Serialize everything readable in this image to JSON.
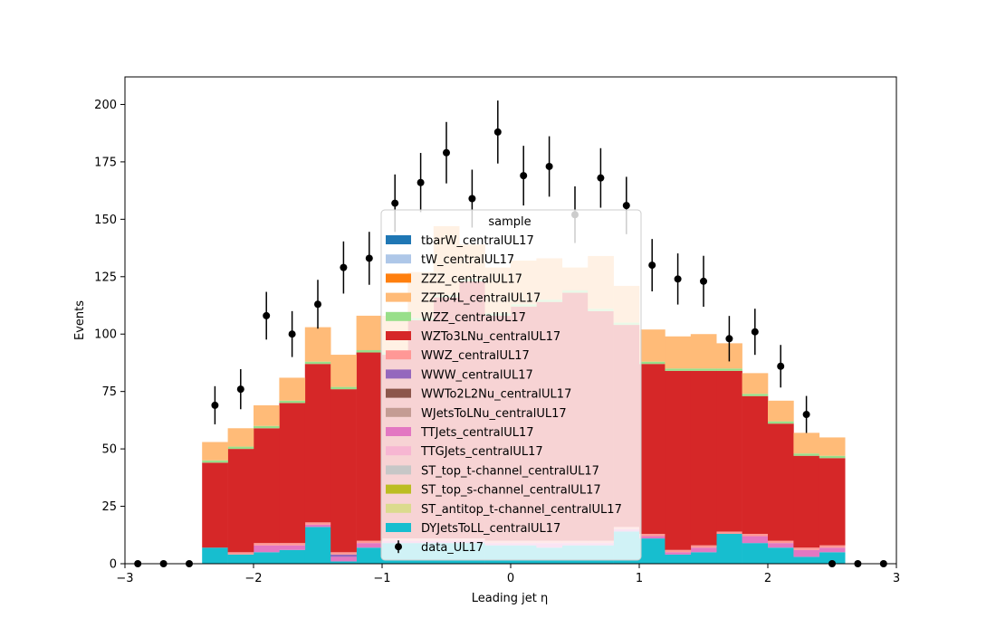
{
  "chart_data": {
    "type": "stacked-histogram",
    "xlabel": "Leading jet  η",
    "ylabel": "Events",
    "xlim": [
      -3,
      3
    ],
    "ylim": [
      0,
      212
    ],
    "xticks": [
      -3,
      -2,
      -1,
      0,
      1,
      2,
      3
    ],
    "xtick_labels": [
      "−3",
      "−2",
      "−1",
      "0",
      "1",
      "2",
      "3"
    ],
    "yticks": [
      0,
      25,
      50,
      75,
      100,
      125,
      150,
      175,
      200
    ],
    "legend": {
      "title": "sample",
      "placement": "center",
      "entries": [
        {
          "label": "tbarW_centralUL17",
          "color": "#1f77b4",
          "kind": "patch"
        },
        {
          "label": "tW_centralUL17",
          "color": "#aec7e8",
          "kind": "patch"
        },
        {
          "label": "ZZZ_centralUL17",
          "color": "#ff7f0e",
          "kind": "patch"
        },
        {
          "label": "ZZTo4L_centralUL17",
          "color": "#ffbb78",
          "kind": "patch"
        },
        {
          "label": "WZZ_centralUL17",
          "color": "#98df8a",
          "kind": "patch"
        },
        {
          "label": "WZTo3LNu_centralUL17",
          "color": "#d62728",
          "kind": "patch"
        },
        {
          "label": "WWZ_centralUL17",
          "color": "#ff9896",
          "kind": "patch"
        },
        {
          "label": "WWW_centralUL17",
          "color": "#9467bd",
          "kind": "patch"
        },
        {
          "label": "WWTo2L2Nu_centralUL17",
          "color": "#8c564b",
          "kind": "patch"
        },
        {
          "label": "WJetsToLNu_centralUL17",
          "color": "#c49c94",
          "kind": "patch"
        },
        {
          "label": "TTJets_centralUL17",
          "color": "#e377c2",
          "kind": "patch"
        },
        {
          "label": "TTGJets_centralUL17",
          "color": "#f7b6d2",
          "kind": "patch"
        },
        {
          "label": "ST_top_t-channel_centralUL17",
          "color": "#c7c7c7",
          "kind": "patch"
        },
        {
          "label": "ST_top_s-channel_centralUL17",
          "color": "#bcbd22",
          "kind": "patch"
        },
        {
          "label": "ST_antitop_t-channel_centralUL17",
          "color": "#dbdb8d",
          "kind": "patch"
        },
        {
          "label": "DYJetsToLL_centralUL17",
          "color": "#17becf",
          "kind": "patch"
        },
        {
          "label": "data_UL17",
          "color": "#000000",
          "kind": "errorbar"
        }
      ]
    },
    "bin_edges": [
      -3.0,
      -2.8,
      -2.6,
      -2.4,
      -2.2,
      -2.0,
      -1.8,
      -1.6,
      -1.4,
      -1.2,
      -1.0,
      -0.8,
      -0.6,
      -0.4,
      -0.2,
      0.0,
      0.2,
      0.4,
      0.6,
      0.8,
      1.0,
      1.2,
      1.4,
      1.6,
      1.8,
      2.0,
      2.2,
      2.4,
      2.6,
      2.8,
      3.0
    ],
    "series": [
      {
        "name": "DYJetsToLL_centralUL17",
        "color": "#17becf",
        "values": [
          0,
          0,
          0,
          7,
          4,
          5,
          6,
          16,
          1,
          7,
          9,
          9,
          9,
          9,
          8,
          8,
          7,
          8,
          8,
          14,
          11,
          4,
          5,
          13,
          9,
          7,
          3,
          5,
          0,
          0
        ]
      },
      {
        "name": "ST_antitop_t-channel_centralUL17",
        "color": "#dbdb8d",
        "values": [
          0,
          0,
          0,
          0,
          0,
          0,
          0,
          0,
          0,
          0,
          0,
          0,
          0,
          0,
          0,
          0,
          0,
          0,
          0,
          0,
          0,
          0,
          0,
          0,
          0,
          0,
          0,
          0,
          0,
          0
        ]
      },
      {
        "name": "ST_top_s-channel_centralUL17",
        "color": "#bcbd22",
        "values": [
          0,
          0,
          0,
          0,
          0,
          0,
          0,
          0,
          0,
          0,
          0,
          0,
          0,
          0,
          0,
          0,
          0,
          0,
          0,
          0,
          0,
          0,
          0,
          0,
          0,
          0,
          0,
          0,
          0,
          0
        ]
      },
      {
        "name": "ST_top_t-channel_centralUL17",
        "color": "#c7c7c7",
        "values": [
          0,
          0,
          0,
          0,
          0,
          0,
          0,
          0,
          0,
          0,
          0,
          0,
          0,
          0,
          0,
          0,
          0,
          0,
          0,
          0,
          0,
          0,
          0,
          0,
          0,
          0,
          0,
          0,
          0,
          0
        ]
      },
      {
        "name": "TTGJets_centralUL17",
        "color": "#f7b6d2",
        "values": [
          0,
          0,
          0,
          0,
          0,
          0,
          0,
          0,
          0,
          0,
          0,
          0,
          0,
          0,
          0,
          0,
          0,
          0,
          0,
          0,
          0,
          0,
          0,
          0,
          0,
          0,
          0,
          0,
          0,
          0
        ]
      },
      {
        "name": "TTJets_centralUL17",
        "color": "#e377c2",
        "values": [
          0,
          0,
          0,
          0,
          0,
          3,
          2,
          1,
          2,
          2,
          1,
          1,
          1,
          1,
          1,
          1,
          2,
          1,
          1,
          1,
          1,
          1,
          2,
          0,
          3,
          2,
          3,
          2,
          0,
          0
        ]
      },
      {
        "name": "WJetsToLNu_centralUL17",
        "color": "#c49c94",
        "values": [
          0,
          0,
          0,
          0,
          0,
          0,
          0,
          0,
          0,
          0,
          0,
          0,
          0,
          0,
          0,
          0,
          0,
          0,
          0,
          0,
          0,
          0,
          0,
          0,
          0,
          0,
          0,
          0,
          0,
          0
        ]
      },
      {
        "name": "WWTo2L2Nu_centralUL17",
        "color": "#8c564b",
        "values": [
          0,
          0,
          0,
          0,
          0,
          0,
          0,
          0,
          0,
          0,
          0,
          0,
          0,
          0,
          0,
          0,
          0,
          0,
          0,
          0,
          0,
          0,
          0,
          0,
          0,
          0,
          0,
          0,
          0,
          0
        ]
      },
      {
        "name": "WWW_centralUL17",
        "color": "#9467bd",
        "values": [
          0,
          0,
          0,
          0,
          0,
          0,
          0,
          0,
          1,
          0,
          0,
          0,
          0,
          0,
          0,
          0,
          0,
          0,
          0,
          0,
          0,
          0,
          0,
          0,
          0,
          0,
          0,
          0,
          0,
          0
        ]
      },
      {
        "name": "WWZ_centralUL17",
        "color": "#ff9896",
        "values": [
          0,
          0,
          0,
          0,
          1,
          1,
          1,
          1,
          1,
          1,
          1,
          1,
          1,
          1,
          1,
          1,
          1,
          1,
          1,
          1,
          1,
          1,
          1,
          1,
          1,
          1,
          1,
          1,
          0,
          0
        ]
      },
      {
        "name": "WZTo3LNu_centralUL17",
        "color": "#d62728",
        "values": [
          0,
          0,
          0,
          37,
          45,
          50,
          61,
          69,
          71,
          82,
          80,
          95,
          105,
          112,
          98,
          102,
          104,
          108,
          100,
          88,
          74,
          78,
          76,
          70,
          60,
          51,
          40,
          38,
          0,
          0
        ]
      },
      {
        "name": "WZZ_centralUL17",
        "color": "#98df8a",
        "values": [
          0,
          0,
          0,
          1,
          1,
          1,
          1,
          1,
          1,
          1,
          1,
          1,
          1,
          1,
          1,
          1,
          1,
          1,
          1,
          1,
          1,
          1,
          1,
          1,
          1,
          1,
          1,
          1,
          0,
          0
        ]
      },
      {
        "name": "ZZTo4L_centralUL17",
        "color": "#ffbb78",
        "values": [
          0,
          0,
          0,
          8,
          8,
          9,
          10,
          15,
          14,
          15,
          16,
          20,
          30,
          15,
          20,
          19,
          18,
          10,
          23,
          16,
          14,
          14,
          15,
          11,
          9,
          9,
          9,
          8,
          0,
          0
        ]
      },
      {
        "name": "ZZZ_centralUL17",
        "color": "#ff7f0e",
        "values": [
          0,
          0,
          0,
          0,
          0,
          0,
          0,
          0,
          0,
          0,
          0,
          0,
          0,
          0,
          0,
          0,
          0,
          0,
          0,
          0,
          0,
          0,
          0,
          0,
          0,
          0,
          0,
          0,
          0,
          0
        ]
      },
      {
        "name": "tW_centralUL17",
        "color": "#aec7e8",
        "values": [
          0,
          0,
          0,
          0,
          0,
          0,
          0,
          0,
          0,
          0,
          0,
          0,
          0,
          0,
          0,
          0,
          0,
          0,
          0,
          0,
          0,
          0,
          0,
          0,
          0,
          0,
          0,
          0,
          0,
          0
        ]
      },
      {
        "name": "tbarW_centralUL17",
        "color": "#1f77b4",
        "values": [
          0,
          0,
          0,
          0,
          0,
          0,
          0,
          0,
          0,
          0,
          0,
          0,
          0,
          0,
          0,
          0,
          0,
          0,
          0,
          0,
          0,
          0,
          0,
          0,
          0,
          0,
          0,
          0,
          0,
          0
        ]
      }
    ],
    "data_points": {
      "name": "data_UL17",
      "x": [
        -2.9,
        -2.7,
        -2.5,
        -2.3,
        -2.1,
        -1.9,
        -1.7,
        -1.5,
        -1.3,
        -1.1,
        -0.9,
        -0.7,
        -0.5,
        -0.3,
        -0.1,
        0.1,
        0.3,
        0.5,
        0.7,
        0.9,
        1.1,
        1.3,
        1.5,
        1.7,
        1.9,
        2.1,
        2.3,
        2.5,
        2.7,
        2.9
      ],
      "y": [
        0,
        0,
        0,
        69,
        76,
        108,
        100,
        113,
        129,
        133,
        157,
        166,
        179,
        159,
        188,
        169,
        173,
        152,
        168,
        156,
        130,
        124,
        123,
        98,
        101,
        86,
        65,
        0,
        0,
        0
      ]
    }
  }
}
